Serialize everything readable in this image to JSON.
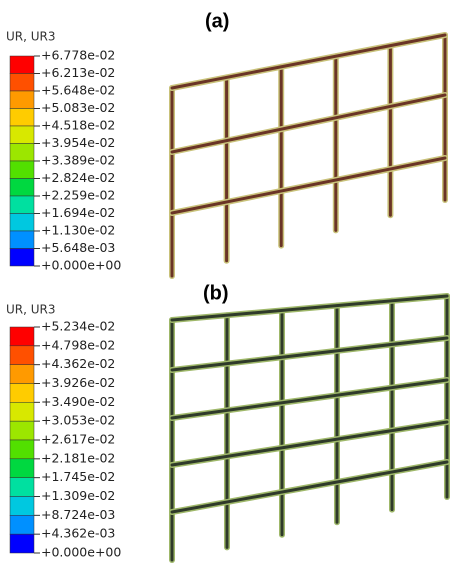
{
  "panels": [
    {
      "label": "(a)",
      "variable": "UR, UR3",
      "legend": [
        "+6.778e-02",
        "+6.213e-02",
        "+5.648e-02",
        "+5.083e-02",
        "+4.518e-02",
        "+3.954e-02",
        "+3.389e-02",
        "+2.824e-02",
        "+2.259e-02",
        "+1.694e-02",
        "+1.130e-02",
        "+5.648e-03",
        "+0.000e+00"
      ]
    },
    {
      "label": "(b)",
      "variable": "UR, UR3",
      "legend": [
        "+5.234e-02",
        "+4.798e-02",
        "+4.362e-02",
        "+3.926e-02",
        "+3.490e-02",
        "+3.053e-02",
        "+2.617e-02",
        "+2.181e-02",
        "+1.745e-02",
        "+1.309e-02",
        "+8.724e-03",
        "+4.362e-03",
        "+0.000e+00"
      ]
    }
  ]
}
